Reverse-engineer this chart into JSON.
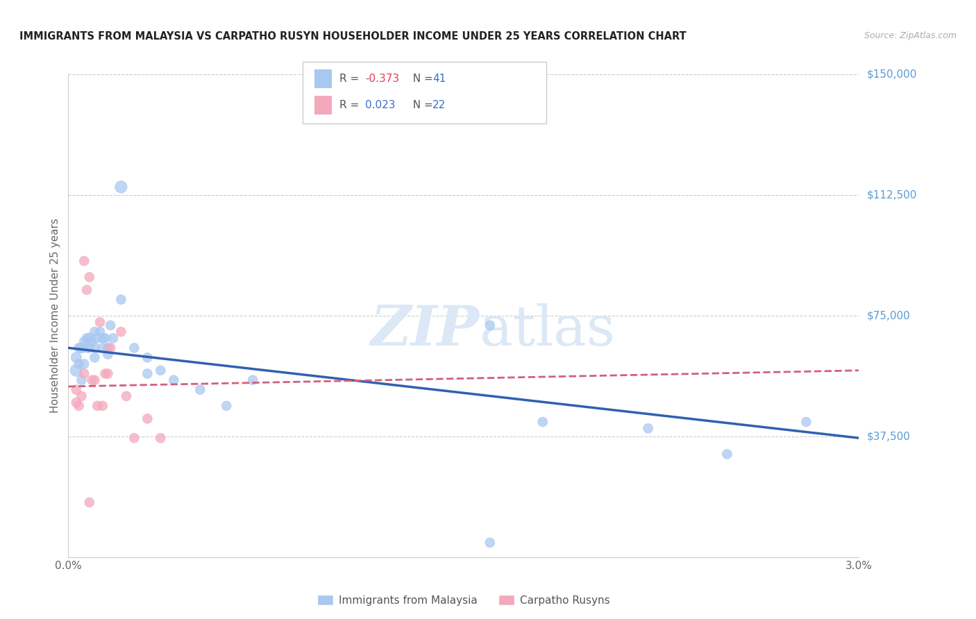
{
  "title": "IMMIGRANTS FROM MALAYSIA VS CARPATHO RUSYN HOUSEHOLDER INCOME UNDER 25 YEARS CORRELATION CHART",
  "source": "Source: ZipAtlas.com",
  "ylabel": "Householder Income Under 25 years",
  "xmin": 0.0,
  "xmax": 0.03,
  "ymin": 0,
  "ymax": 150000,
  "yticks": [
    0,
    37500,
    75000,
    112500,
    150000
  ],
  "ytick_labels": [
    "",
    "$37,500",
    "$75,000",
    "$112,500",
    "$150,000"
  ],
  "legend1_R": "-0.373",
  "legend1_N": "41",
  "legend2_R": "0.023",
  "legend2_N": "22",
  "legend_label1": "Immigrants from Malaysia",
  "legend_label2": "Carpatho Rusyns",
  "color_malaysia": "#a8c8f0",
  "color_rusyn": "#f4a8bc",
  "color_malaysia_line": "#3060b0",
  "color_rusyn_line": "#d06080",
  "watermark_color": "#dce8f5",
  "malaysia_x": [
    0.0003,
    0.0003,
    0.0004,
    0.0004,
    0.0005,
    0.0005,
    0.0006,
    0.0006,
    0.0007,
    0.0007,
    0.0008,
    0.0008,
    0.0009,
    0.001,
    0.001,
    0.001,
    0.0011,
    0.0012,
    0.0013,
    0.0013,
    0.0014,
    0.0015,
    0.0015,
    0.0016,
    0.0017,
    0.002,
    0.002,
    0.0025,
    0.003,
    0.003,
    0.0035,
    0.004,
    0.005,
    0.006,
    0.007,
    0.016,
    0.018,
    0.022,
    0.025,
    0.028,
    0.016
  ],
  "malaysia_y": [
    58000,
    62000,
    60000,
    65000,
    55000,
    65000,
    60000,
    67000,
    65000,
    68000,
    65000,
    68000,
    67000,
    70000,
    65000,
    62000,
    68000,
    70000,
    65000,
    68000,
    68000,
    65000,
    63000,
    72000,
    68000,
    115000,
    80000,
    65000,
    62000,
    57000,
    58000,
    55000,
    52000,
    47000,
    55000,
    72000,
    42000,
    40000,
    32000,
    42000,
    4500
  ],
  "malaysia_size": [
    80,
    60,
    50,
    50,
    50,
    60,
    50,
    50,
    50,
    50,
    50,
    60,
    50,
    50,
    50,
    50,
    50,
    50,
    50,
    50,
    50,
    50,
    50,
    50,
    50,
    80,
    50,
    50,
    50,
    50,
    50,
    50,
    50,
    50,
    50,
    50,
    50,
    50,
    50,
    50,
    50
  ],
  "rusyn_x": [
    0.0003,
    0.0004,
    0.0005,
    0.0006,
    0.0007,
    0.0008,
    0.0009,
    0.001,
    0.0011,
    0.0012,
    0.0013,
    0.0015,
    0.0016,
    0.002,
    0.0022,
    0.0025,
    0.003,
    0.0035,
    0.0003,
    0.0006,
    0.0008,
    0.0014
  ],
  "rusyn_y": [
    52000,
    47000,
    50000,
    92000,
    83000,
    87000,
    55000,
    55000,
    47000,
    73000,
    47000,
    57000,
    65000,
    70000,
    50000,
    37000,
    43000,
    37000,
    48000,
    57000,
    17000,
    57000
  ],
  "rusyn_size": [
    50,
    50,
    50,
    50,
    50,
    50,
    50,
    50,
    50,
    50,
    50,
    50,
    50,
    50,
    50,
    50,
    50,
    50,
    50,
    50,
    50,
    50
  ],
  "malaysia_line_x0": 0.0,
  "malaysia_line_x1": 0.03,
  "malaysia_line_y0": 65000,
  "malaysia_line_y1": 37000,
  "rusyn_line_x0": 0.0,
  "rusyn_line_x1": 0.03,
  "rusyn_line_y0": 53000,
  "rusyn_line_y1": 58000
}
